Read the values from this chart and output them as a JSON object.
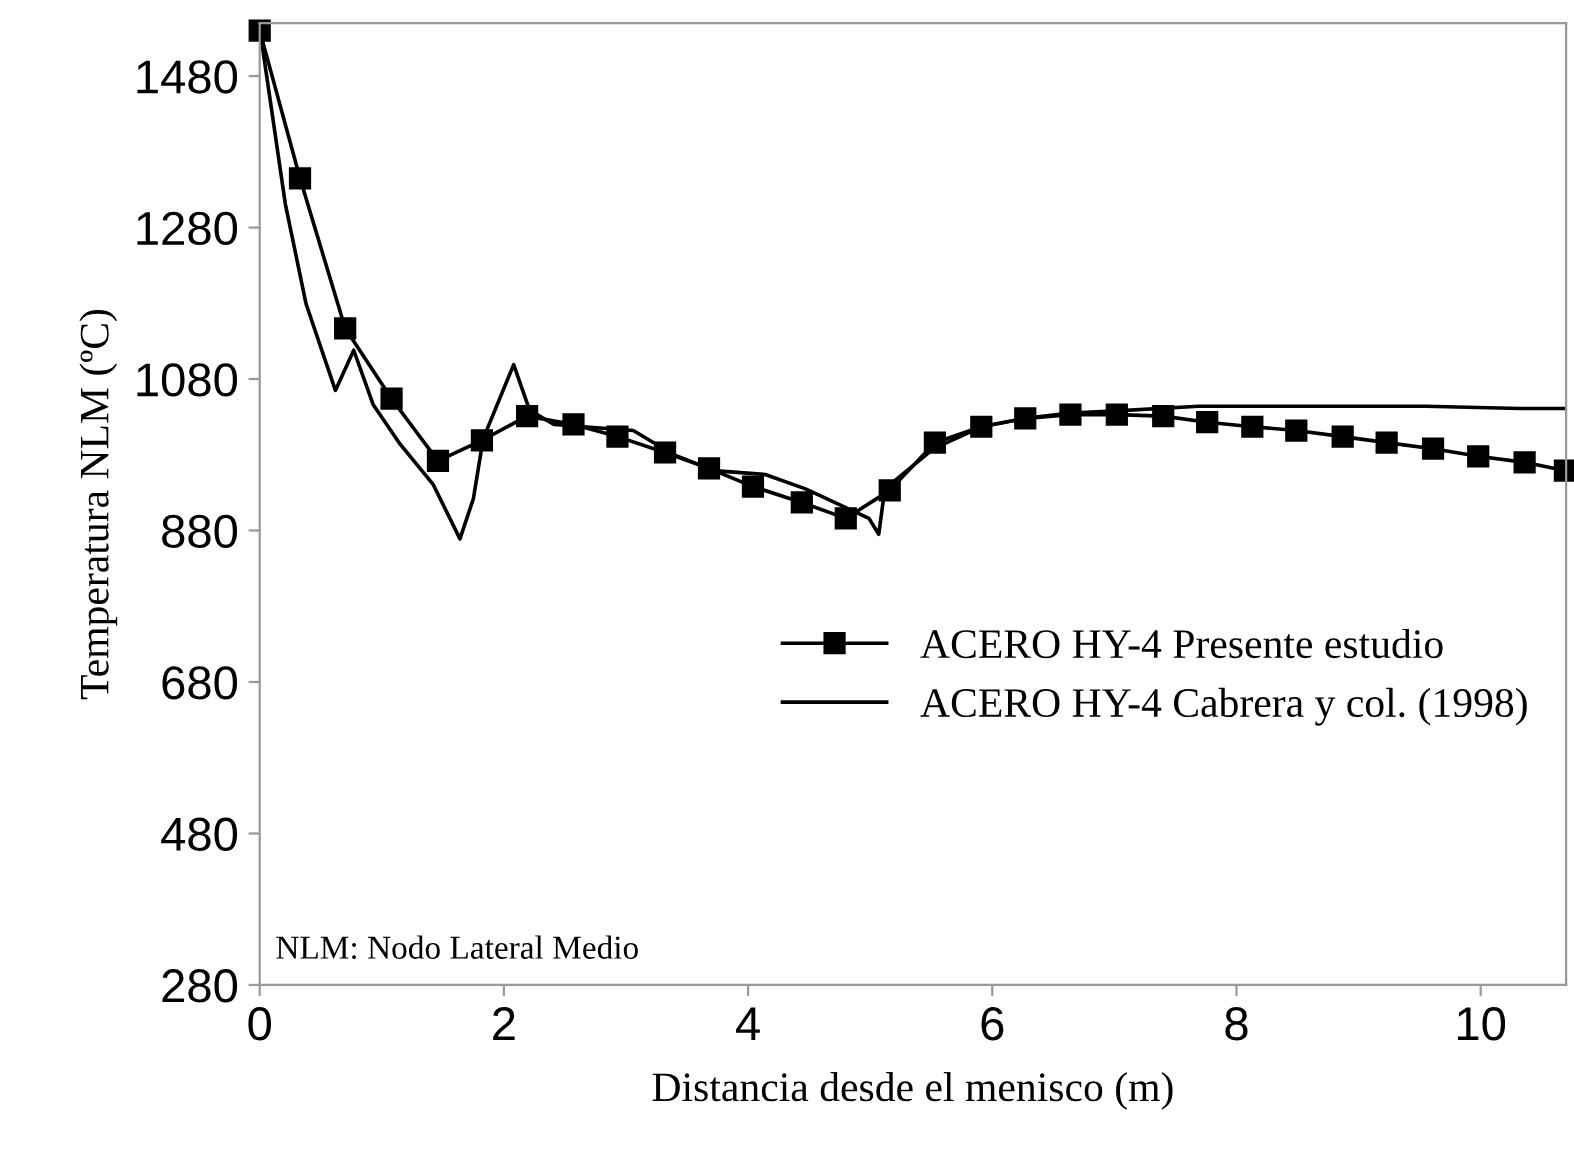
{
  "chart_data": {
    "type": "line",
    "xlabel": "Distancia desde el menisco (m)",
    "ylabel": "Temperatura NLM (ºC)",
    "xlim": [
      0,
      10.7
    ],
    "ylim": [
      280,
      1550
    ],
    "xticks": [
      0,
      2,
      4,
      6,
      8,
      10
    ],
    "yticks": [
      280,
      480,
      680,
      880,
      1080,
      1280,
      1480
    ],
    "grid": false,
    "legend": "right",
    "annotations": [
      "NLM: Nodo Lateral Medio"
    ],
    "series": [
      {
        "name": "ACERO HY-4 Presente estudio",
        "color": "#000000",
        "marker": "square",
        "line_style": "solid",
        "x": [
          0,
          0.33,
          0.7,
          1.08,
          1.46,
          1.82,
          2.19,
          2.57,
          2.93,
          3.32,
          3.68,
          4.04,
          4.44,
          4.8,
          5.16,
          5.53,
          5.91,
          6.27,
          6.64,
          7.02,
          7.4,
          7.76,
          8.13,
          8.49,
          8.87,
          9.23,
          9.61,
          9.98,
          10.36,
          10.69
        ],
        "values": [
          1540,
          1345,
          1147,
          1054,
          972,
          999,
          1031,
          1020,
          1004,
          983,
          962,
          938,
          917,
          896,
          933,
          996,
          1017,
          1028,
          1033,
          1033,
          1031,
          1023,
          1017,
          1012,
          1004,
          996,
          988,
          978,
          970,
          959
        ]
      },
      {
        "name": "ACERO HY-4 Cabrera y col. (1998)",
        "color": "#000000",
        "marker": "none",
        "line_style": "solid",
        "x": [
          0,
          0.21,
          0.38,
          0.62,
          0.77,
          0.93,
          1.15,
          1.42,
          1.64,
          1.75,
          1.83,
          2.08,
          2.21,
          2.41,
          3.06,
          3.39,
          3.72,
          4.14,
          4.47,
          4.99,
          5.07,
          5.12,
          5.52,
          5.91,
          6.27,
          6.64,
          7.02,
          7.69,
          9.55,
          10.32,
          10.69
        ],
        "values": [
          1543,
          1311,
          1179,
          1065,
          1118,
          1046,
          994,
          941,
          869,
          922,
          1001,
          1099,
          1039,
          1020,
          1012,
          980,
          959,
          954,
          935,
          896,
          875,
          935,
          988,
          1017,
          1028,
          1035,
          1038,
          1044,
          1044,
          1041,
          1041
        ]
      }
    ]
  }
}
